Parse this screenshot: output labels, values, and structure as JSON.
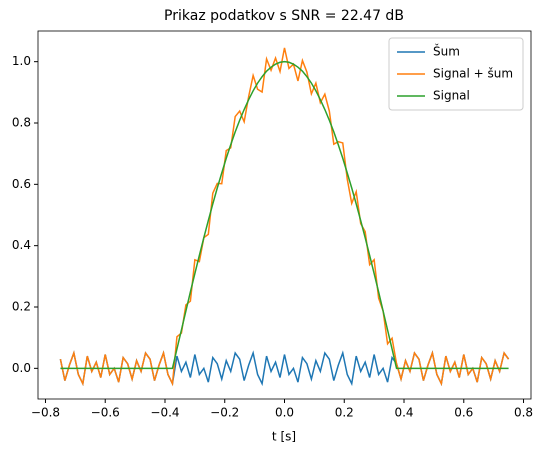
{
  "chart_data": {
    "type": "line",
    "title": "Prikaz podatkov s SNR = 22.47 dB",
    "xlabel": "t [s]",
    "x": [
      -0.75,
      -0.735,
      -0.72,
      -0.705,
      -0.69,
      -0.675,
      -0.66,
      -0.645,
      -0.63,
      -0.615,
      -0.6,
      -0.585,
      -0.57,
      -0.555,
      -0.54,
      -0.525,
      -0.51,
      -0.495,
      -0.48,
      -0.465,
      -0.45,
      -0.435,
      -0.42,
      -0.405,
      -0.39,
      -0.375,
      -0.36,
      -0.345,
      -0.33,
      -0.315,
      -0.3,
      -0.285,
      -0.27,
      -0.255,
      -0.24,
      -0.225,
      -0.21,
      -0.195,
      -0.18,
      -0.165,
      -0.15,
      -0.135,
      -0.12,
      -0.105,
      -0.09,
      -0.075,
      -0.06,
      -0.045,
      -0.03,
      -0.015,
      0,
      0.015,
      0.03,
      0.045,
      0.06,
      0.075,
      0.09,
      0.105,
      0.12,
      0.135,
      0.15,
      0.165,
      0.18,
      0.195,
      0.21,
      0.225,
      0.24,
      0.255,
      0.27,
      0.285,
      0.3,
      0.315,
      0.33,
      0.345,
      0.36,
      0.375,
      0.39,
      0.405,
      0.42,
      0.435,
      0.45,
      0.465,
      0.48,
      0.495,
      0.51,
      0.525,
      0.54,
      0.555,
      0.57,
      0.585,
      0.6,
      0.615,
      0.63,
      0.645,
      0.66,
      0.675,
      0.69,
      0.705,
      0.72,
      0.735,
      0.75
    ],
    "series": [
      {
        "name": "Šum",
        "color": "#1f77b4",
        "values": [
          0.03,
          -0.04,
          0.01,
          0.05,
          -0.02,
          -0.05,
          0.04,
          -0.01,
          0.02,
          -0.03,
          0.045,
          -0.02,
          0,
          -0.045,
          0.035,
          0.015,
          -0.035,
          0.025,
          -0.01,
          0.05,
          0.03,
          -0.04,
          0.01,
          0.05,
          -0.02,
          -0.05,
          0.04,
          -0.01,
          0.02,
          -0.03,
          0.045,
          -0.02,
          0,
          -0.045,
          0.035,
          0.015,
          -0.035,
          0.025,
          -0.01,
          0.05,
          0.03,
          -0.04,
          0.01,
          0.05,
          -0.02,
          -0.05,
          0.04,
          -0.01,
          0.02,
          -0.03,
          0.045,
          -0.02,
          0,
          -0.045,
          0.035,
          0.015,
          -0.035,
          0.025,
          -0.01,
          0.05,
          0.03,
          -0.04,
          0.01,
          0.05,
          -0.02,
          -0.05,
          0.04,
          -0.01,
          0.02,
          -0.03,
          0.045,
          -0.02,
          0,
          -0.045,
          0.035,
          0.015,
          -0.035,
          0.025,
          -0.01,
          0.05,
          0.03,
          -0.04,
          0.01,
          0.05,
          -0.02,
          -0.05,
          0.04,
          -0.01,
          0.02,
          -0.03,
          0.045,
          -0.02,
          0,
          -0.045,
          0.035,
          0.015,
          -0.035,
          0.025,
          -0.01,
          0.05,
          0.03
        ]
      },
      {
        "name": "Signal + šum",
        "color": "#ff7f0e",
        "values": [
          0.03,
          -0.04,
          0.01,
          0.05,
          -0.02,
          -0.05,
          0.04,
          -0.01,
          0.02,
          -0.03,
          0.045,
          -0.02,
          0,
          -0.045,
          0.035,
          0.015,
          -0.035,
          0.025,
          -0.01,
          0.05,
          0.03,
          -0.04,
          0.01,
          0.05,
          -0.02,
          -0.05,
          0.103,
          0.115,
          0.207,
          0.219,
          0.354,
          0.348,
          0.426,
          0.437,
          0.571,
          0.603,
          0.602,
          0.71,
          0.719,
          0.821,
          0.839,
          0.804,
          0.886,
          0.955,
          0.91,
          0.901,
          1.009,
          0.972,
          1.012,
          0.968,
          1.045,
          0.978,
          0.992,
          0.937,
          1.004,
          0.966,
          0.895,
          0.93,
          0.866,
          0.894,
          0.839,
          0.731,
          0.739,
          0.735,
          0.617,
          0.538,
          0.576,
          0.472,
          0.446,
          0.338,
          0.354,
          0.229,
          0.187,
          0.08,
          0.098,
          0.015,
          -0.035,
          0.025,
          -0.01,
          0.05,
          0.03,
          -0.04,
          0.01,
          0.05,
          -0.02,
          -0.05,
          0.04,
          -0.01,
          0.02,
          -0.03,
          0.045,
          -0.02,
          0,
          -0.045,
          0.035,
          0.015,
          -0.035,
          0.025,
          -0.01,
          0.05,
          0.03
        ]
      },
      {
        "name": "Signal",
        "color": "#2ca02c",
        "values": [
          0,
          0,
          0,
          0,
          0,
          0,
          0,
          0,
          0,
          0,
          0,
          0,
          0,
          0,
          0,
          0,
          0,
          0,
          0,
          0,
          0,
          0,
          0,
          0,
          0,
          0,
          0.063,
          0.125,
          0.187,
          0.249,
          0.309,
          0.368,
          0.426,
          0.482,
          0.536,
          0.588,
          0.637,
          0.685,
          0.729,
          0.771,
          0.809,
          0.844,
          0.876,
          0.905,
          0.93,
          0.951,
          0.969,
          0.982,
          0.992,
          0.998,
          1.0,
          0.998,
          0.992,
          0.982,
          0.969,
          0.951,
          0.93,
          0.905,
          0.876,
          0.844,
          0.809,
          0.771,
          0.729,
          0.685,
          0.637,
          0.588,
          0.536,
          0.482,
          0.426,
          0.368,
          0.309,
          0.249,
          0.187,
          0.125,
          0.063,
          0,
          0,
          0,
          0,
          0,
          0,
          0,
          0,
          0,
          0,
          0,
          0,
          0,
          0,
          0,
          0,
          0,
          0,
          0,
          0,
          0,
          0,
          0,
          0,
          0,
          0
        ]
      }
    ],
    "xlim": [
      -0.825,
      0.825
    ],
    "ylim": [
      -0.1,
      1.1
    ],
    "xticks": [
      {
        "value": -0.8,
        "label": "−0.8"
      },
      {
        "value": -0.6,
        "label": "−0.6"
      },
      {
        "value": -0.4,
        "label": "−0.4"
      },
      {
        "value": -0.2,
        "label": "−0.2"
      },
      {
        "value": 0,
        "label": "0.0"
      },
      0.2,
      0.4,
      0.6,
      0.8
    ],
    "yticks": [
      {
        "value": 0,
        "label": "0.0"
      },
      0.2,
      0.4,
      0.6,
      0.8,
      {
        "value": 1,
        "label": "1.0"
      }
    ],
    "legend": "upper right"
  }
}
